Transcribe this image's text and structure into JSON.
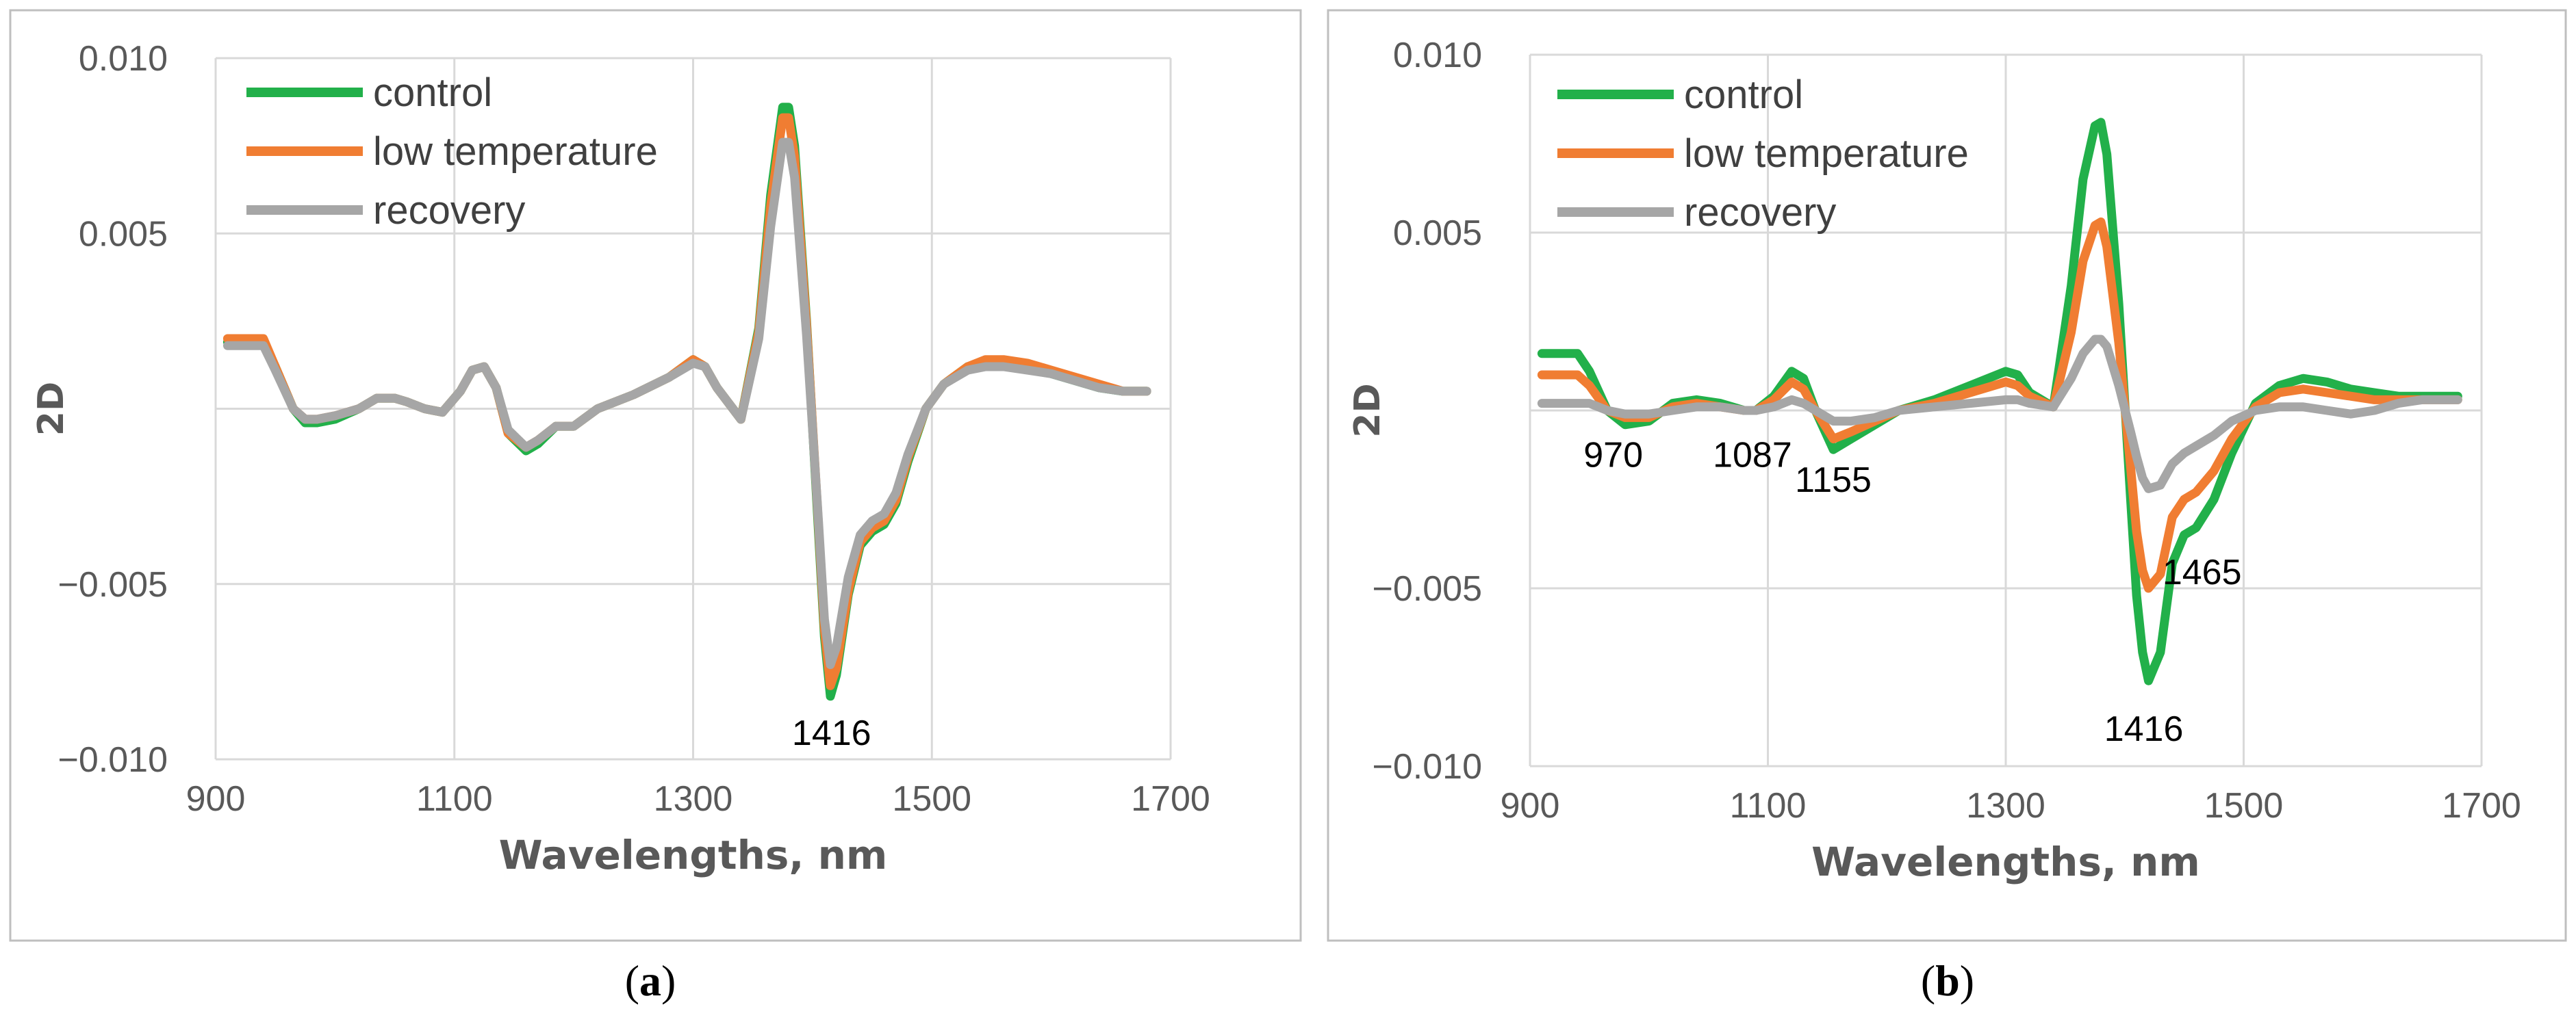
{
  "colors": {
    "control": "#22B04A",
    "low": "#F07D32",
    "recovery": "#A6A6A6",
    "grid": "#D9D9D9",
    "frame": "#BFBFBF"
  },
  "chart_data": [
    {
      "type": "line",
      "caption": {
        "open": "(",
        "letter": "a",
        "close": ")"
      },
      "xlabel": "Wavelengths, nm",
      "ylabel": "2D",
      "xlim": [
        900,
        1700
      ],
      "ylim": [
        -0.01,
        0.01
      ],
      "xticks": [
        "900",
        "1100",
        "1300",
        "1500",
        "1700"
      ],
      "yticks": [
        "0.010",
        "0.005",
        "",
        "−0.005",
        "−0.010"
      ],
      "legend_position": "top-left",
      "series": [
        {
          "name": "control",
          "color_key": "control",
          "x": [
            910,
            940,
            950,
            965,
            975,
            985,
            1000,
            1020,
            1035,
            1050,
            1060,
            1075,
            1090,
            1105,
            1115,
            1125,
            1135,
            1145,
            1160,
            1170,
            1185,
            1200,
            1220,
            1250,
            1280,
            1300,
            1310,
            1320,
            1340,
            1355,
            1365,
            1375,
            1380,
            1385,
            1395,
            1405,
            1410,
            1415,
            1420,
            1430,
            1440,
            1450,
            1460,
            1470,
            1480,
            1495,
            1510,
            1530,
            1545,
            1560,
            1580,
            1600,
            1620,
            1640,
            1660,
            1680
          ],
          "y": [
            0.0019,
            0.0019,
            0.0012,
            0.0,
            -0.0004,
            -0.0004,
            -0.0003,
            0.0,
            0.0003,
            0.0003,
            0.0002,
            0.0,
            -0.0001,
            0.0005,
            0.0011,
            0.0012,
            0.0006,
            -0.0007,
            -0.0012,
            -0.001,
            -0.0005,
            -0.0005,
            0.0,
            0.0004,
            0.0009,
            0.0014,
            0.0012,
            0.0006,
            -0.0003,
            0.0023,
            0.0061,
            0.0086,
            0.0086,
            0.0075,
            0.0025,
            -0.0035,
            -0.0065,
            -0.0082,
            -0.0076,
            -0.0053,
            -0.0039,
            -0.0035,
            -0.0033,
            -0.0027,
            -0.0015,
            0.0,
            0.0007,
            0.0012,
            0.0013,
            0.0013,
            0.0012,
            0.001,
            0.0008,
            0.0006,
            0.0005,
            0.0005
          ]
        },
        {
          "name": "low temperature",
          "color_key": "low",
          "x": [
            910,
            940,
            950,
            965,
            975,
            985,
            1000,
            1020,
            1035,
            1050,
            1060,
            1075,
            1090,
            1105,
            1115,
            1125,
            1135,
            1145,
            1160,
            1170,
            1185,
            1200,
            1220,
            1250,
            1280,
            1300,
            1310,
            1320,
            1340,
            1355,
            1365,
            1375,
            1380,
            1385,
            1395,
            1405,
            1410,
            1415,
            1420,
            1430,
            1440,
            1450,
            1460,
            1470,
            1480,
            1495,
            1510,
            1530,
            1545,
            1560,
            1580,
            1600,
            1620,
            1640,
            1660,
            1680
          ],
          "y": [
            0.002,
            0.002,
            0.0012,
            0.0,
            -0.0003,
            -0.0003,
            -0.0002,
            0.0,
            0.0003,
            0.0003,
            0.0002,
            0.0,
            -0.0001,
            0.0005,
            0.0011,
            0.0012,
            0.0006,
            -0.0007,
            -0.0011,
            -0.0009,
            -0.0005,
            -0.0005,
            0.0,
            0.0004,
            0.0009,
            0.0014,
            0.0012,
            0.0006,
            -0.0003,
            0.0022,
            0.0058,
            0.0083,
            0.0083,
            0.0072,
            0.0024,
            -0.0033,
            -0.0063,
            -0.0079,
            -0.0074,
            -0.0052,
            -0.0038,
            -0.0034,
            -0.0032,
            -0.0026,
            -0.0014,
            0.0,
            0.0007,
            0.0012,
            0.0014,
            0.0014,
            0.0013,
            0.0011,
            0.0009,
            0.0007,
            0.0005,
            0.0005
          ]
        },
        {
          "name": "recovery",
          "color_key": "recovery",
          "x": [
            910,
            940,
            950,
            965,
            975,
            985,
            1000,
            1020,
            1035,
            1050,
            1060,
            1075,
            1090,
            1105,
            1115,
            1125,
            1135,
            1145,
            1160,
            1170,
            1185,
            1200,
            1220,
            1250,
            1280,
            1300,
            1310,
            1320,
            1340,
            1355,
            1365,
            1375,
            1380,
            1385,
            1395,
            1405,
            1410,
            1415,
            1420,
            1430,
            1440,
            1450,
            1460,
            1470,
            1480,
            1495,
            1510,
            1530,
            1545,
            1560,
            1580,
            1600,
            1620,
            1640,
            1660,
            1680
          ],
          "y": [
            0.0018,
            0.0018,
            0.0011,
            0.0,
            -0.0003,
            -0.0003,
            -0.0002,
            0.0,
            0.0003,
            0.0003,
            0.0002,
            0.0,
            -0.0001,
            0.0005,
            0.0011,
            0.0012,
            0.0006,
            -0.0006,
            -0.0011,
            -0.0009,
            -0.0005,
            -0.0005,
            0.0,
            0.0004,
            0.0009,
            0.0013,
            0.0012,
            0.0006,
            -0.0003,
            0.002,
            0.0052,
            0.0076,
            0.0076,
            0.0066,
            0.0021,
            -0.0032,
            -0.006,
            -0.0073,
            -0.0068,
            -0.0048,
            -0.0036,
            -0.0032,
            -0.003,
            -0.0024,
            -0.0013,
            0.0,
            0.0007,
            0.0011,
            0.0012,
            0.0012,
            0.0011,
            0.001,
            0.0008,
            0.0006,
            0.0005,
            0.0005
          ]
        }
      ],
      "annotations": [
        {
          "text": "1416",
          "x": 1416,
          "y": -0.0092
        }
      ]
    },
    {
      "type": "line",
      "caption": {
        "open": "(",
        "letter": "b",
        "close": ")"
      },
      "xlabel": "Wavelengths, nm",
      "ylabel": "2D",
      "xlim": [
        900,
        1700
      ],
      "ylim": [
        -0.01,
        0.01
      ],
      "xticks": [
        "900",
        "1100",
        "1300",
        "1500",
        "1700"
      ],
      "yticks": [
        "0.010",
        "0.005",
        "",
        "−0.005",
        "−0.010"
      ],
      "legend_position": "top-left",
      "series": [
        {
          "name": "control",
          "color_key": "control",
          "x": [
            910,
            940,
            950,
            965,
            980,
            1000,
            1020,
            1040,
            1060,
            1080,
            1090,
            1105,
            1120,
            1130,
            1140,
            1155,
            1170,
            1190,
            1210,
            1240,
            1270,
            1300,
            1310,
            1320,
            1340,
            1355,
            1365,
            1375,
            1380,
            1385,
            1395,
            1405,
            1410,
            1415,
            1420,
            1430,
            1440,
            1450,
            1460,
            1475,
            1490,
            1510,
            1530,
            1550,
            1570,
            1590,
            1610,
            1630,
            1650,
            1680
          ],
          "y": [
            0.0016,
            0.0016,
            0.0011,
            0.0,
            -0.0004,
            -0.0003,
            0.0002,
            0.0003,
            0.0002,
            0.0,
            0.0,
            0.0004,
            0.0011,
            0.0009,
            0.0,
            -0.0011,
            -0.0008,
            -0.0004,
            0.0,
            0.0003,
            0.0007,
            0.0011,
            0.001,
            0.0005,
            0.0001,
            0.0035,
            0.0065,
            0.008,
            0.0081,
            0.0072,
            0.003,
            -0.0025,
            -0.0052,
            -0.0068,
            -0.0076,
            -0.0068,
            -0.0043,
            -0.0035,
            -0.0033,
            -0.0025,
            -0.0012,
            0.0002,
            0.0007,
            0.0009,
            0.0008,
            0.0006,
            0.0005,
            0.0004,
            0.0004,
            0.0004
          ]
        },
        {
          "name": "low temperature",
          "color_key": "low",
          "x": [
            910,
            940,
            950,
            965,
            980,
            1000,
            1020,
            1040,
            1060,
            1080,
            1090,
            1105,
            1120,
            1130,
            1140,
            1155,
            1170,
            1190,
            1210,
            1240,
            1270,
            1300,
            1310,
            1320,
            1340,
            1355,
            1365,
            1375,
            1380,
            1385,
            1395,
            1405,
            1410,
            1415,
            1420,
            1430,
            1440,
            1450,
            1460,
            1475,
            1490,
            1510,
            1530,
            1550,
            1570,
            1590,
            1610,
            1630,
            1650,
            1680
          ],
          "y": [
            0.001,
            0.001,
            0.0007,
            0.0,
            -0.0002,
            -0.0002,
            0.0001,
            0.0002,
            0.0001,
            0.0,
            0.0,
            0.0003,
            0.0008,
            0.0006,
            0.0,
            -0.0008,
            -0.0006,
            -0.0003,
            0.0,
            0.0002,
            0.0005,
            0.0008,
            0.0007,
            0.0004,
            0.0001,
            0.0022,
            0.0042,
            0.0052,
            0.0053,
            0.0046,
            0.0019,
            -0.0016,
            -0.0034,
            -0.0045,
            -0.005,
            -0.0046,
            -0.003,
            -0.0025,
            -0.0023,
            -0.0017,
            -0.0008,
            0.0001,
            0.0005,
            0.0006,
            0.0005,
            0.0004,
            0.0003,
            0.0003,
            0.0003,
            0.0003
          ]
        },
        {
          "name": "recovery",
          "color_key": "recovery",
          "x": [
            910,
            940,
            950,
            965,
            980,
            1000,
            1020,
            1040,
            1060,
            1080,
            1090,
            1105,
            1120,
            1130,
            1140,
            1155,
            1170,
            1190,
            1210,
            1240,
            1270,
            1300,
            1310,
            1320,
            1340,
            1355,
            1365,
            1375,
            1380,
            1385,
            1395,
            1405,
            1410,
            1415,
            1420,
            1430,
            1440,
            1450,
            1460,
            1475,
            1490,
            1510,
            1530,
            1550,
            1570,
            1590,
            1610,
            1630,
            1650,
            1680
          ],
          "y": [
            0.0002,
            0.0002,
            0.0002,
            0.0,
            -0.0001,
            -0.0001,
            0.0,
            0.0001,
            0.0001,
            0.0,
            0.0,
            0.0001,
            0.0003,
            0.0002,
            0.0,
            -0.0003,
            -0.0003,
            -0.0002,
            0.0,
            0.0001,
            0.0002,
            0.0003,
            0.0003,
            0.0002,
            0.0001,
            0.0009,
            0.0016,
            0.002,
            0.002,
            0.0018,
            0.0007,
            -0.0006,
            -0.0013,
            -0.0019,
            -0.0022,
            -0.0021,
            -0.0015,
            -0.0012,
            -0.001,
            -0.0007,
            -0.0003,
            0.0,
            0.0001,
            0.0001,
            0.0,
            -0.0001,
            0.0,
            0.0002,
            0.0003,
            0.0003
          ]
        }
      ],
      "annotations": [
        {
          "text": "970",
          "x": 970,
          "y": -0.0012
        },
        {
          "text": "1087",
          "x": 1087,
          "y": -0.0012
        },
        {
          "text": "1155",
          "x": 1155,
          "y": -0.0019
        },
        {
          "text": "1465",
          "x": 1465,
          "y": -0.0045
        },
        {
          "text": "1416",
          "x": 1416,
          "y": -0.0089
        }
      ]
    }
  ]
}
